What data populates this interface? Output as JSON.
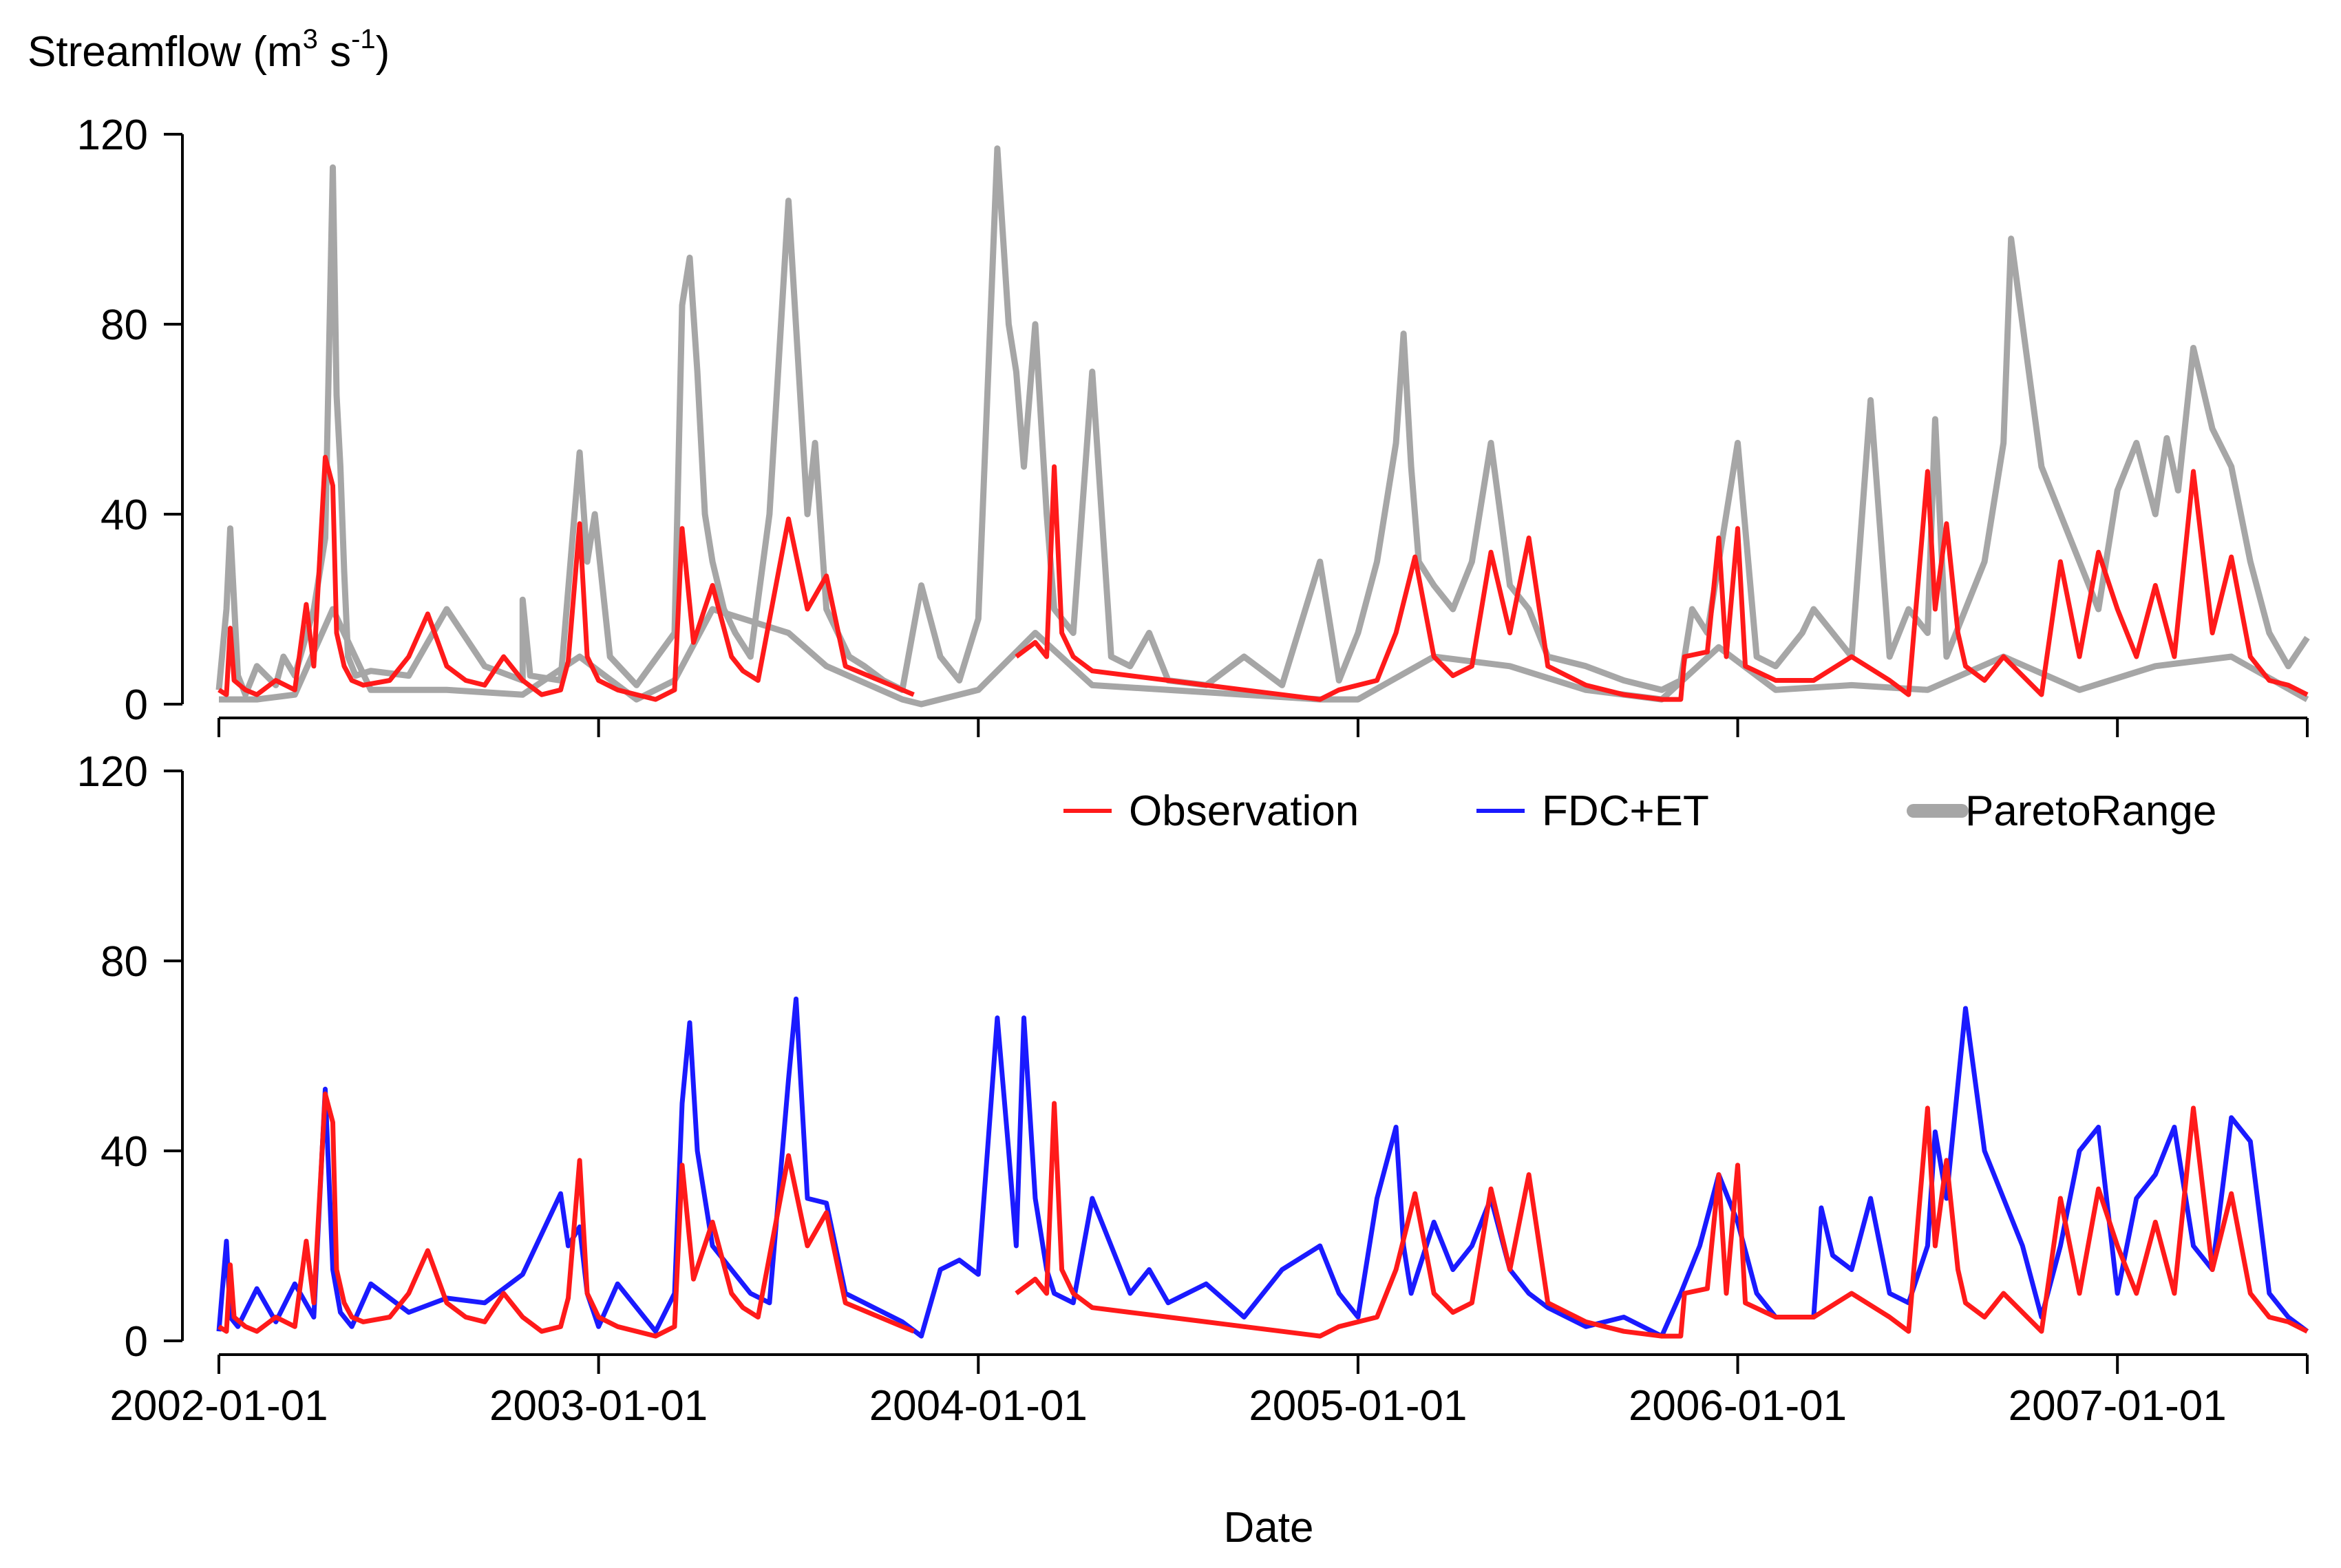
{
  "chart_data": [
    {
      "panel": "top",
      "type": "line",
      "ylabel_main": "Streamflow (m",
      "ylabel_sup1": "3",
      "ylabel_mid": " s",
      "ylabel_sup2": "-1",
      "ylabel_end": ")",
      "ylim": [
        0,
        120
      ],
      "yticks": [
        "0",
        "40",
        "80",
        "120"
      ],
      "ytick_values": [
        0,
        40,
        80,
        120
      ],
      "xlim": [
        2002.0,
        2007.5
      ],
      "xtick_values": [
        2002,
        2003,
        2004,
        2005,
        2006,
        2007
      ],
      "series": [
        {
          "name": "ParetoRange",
          "color": "#a6a6a6",
          "band": "upper",
          "x": [
            2002.0,
            2002.02,
            2002.03,
            2002.05,
            2002.07,
            2002.1,
            2002.15,
            2002.17,
            2002.2,
            2002.25,
            2002.28,
            2002.3,
            2002.31,
            2002.32,
            2002.33,
            2002.34,
            2002.36,
            2002.4,
            2002.5,
            2002.6,
            2002.7,
            2002.8,
            2002.8,
            2002.82,
            2002.9,
            2002.95,
            2002.97,
            2002.99,
            2003.03,
            2003.1,
            2003.2,
            2003.22,
            2003.24,
            2003.26,
            2003.28,
            2003.3,
            2003.33,
            2003.36,
            2003.4,
            2003.45,
            2003.5,
            2003.55,
            2003.57,
            2003.6,
            2003.63,
            2003.66,
            2003.7,
            2003.75,
            2003.8,
            2003.85,
            2003.9,
            2003.95,
            2004.0,
            2004.05,
            2004.08,
            2004.1,
            2004.12,
            2004.15,
            2004.18,
            2004.2,
            2004.25,
            2004.3,
            2004.35,
            2004.4,
            2004.45,
            2004.5,
            2004.6,
            2004.7,
            2004.8,
            2004.9,
            2004.95,
            2005.0,
            2005.05,
            2005.1,
            2005.12,
            2005.14,
            2005.16,
            2005.2,
            2005.25,
            2005.3,
            2005.35,
            2005.4,
            2005.45,
            2005.5,
            2005.6,
            2005.7,
            2005.8,
            2005.85,
            2005.88,
            2005.92,
            2005.95,
            2006.0,
            2006.05,
            2006.1,
            2006.17,
            2006.2,
            2006.3,
            2006.35,
            2006.4,
            2006.45,
            2006.5,
            2006.52,
            2006.55,
            2006.6,
            2006.65,
            2006.7,
            2006.72,
            2006.8,
            2006.85,
            2006.9,
            2006.95,
            2007.0,
            2007.05,
            2007.1,
            2007.13,
            2007.16,
            2007.2,
            2007.25,
            2007.3,
            2007.35,
            2007.4,
            2007.45,
            2007.5
          ],
          "y": [
            3,
            20,
            37,
            6,
            2,
            8,
            4,
            10,
            6,
            20,
            35,
            113,
            65,
            50,
            28,
            10,
            6,
            7,
            6,
            20,
            8,
            5,
            22,
            6,
            5,
            53,
            30,
            40,
            10,
            4,
            15,
            84,
            94,
            70,
            40,
            30,
            20,
            15,
            10,
            40,
            106,
            40,
            55,
            20,
            15,
            10,
            8,
            5,
            3,
            25,
            10,
            5,
            18,
            117,
            80,
            70,
            50,
            80,
            40,
            20,
            15,
            70,
            10,
            8,
            15,
            5,
            4,
            10,
            4,
            30,
            5,
            15,
            30,
            55,
            78,
            50,
            30,
            25,
            20,
            30,
            55,
            25,
            20,
            10,
            8,
            5,
            3,
            5,
            20,
            15,
            30,
            55,
            10,
            8,
            15,
            20,
            10,
            64,
            10,
            20,
            15,
            60,
            10,
            20,
            30,
            55,
            98,
            50,
            40,
            30,
            20,
            45,
            55,
            40,
            56,
            45,
            75,
            58,
            50,
            30,
            15,
            8,
            14
          ]
        },
        {
          "name": "ParetoRangeLow",
          "color": "#a6a6a6",
          "band": "lower",
          "x": [
            2002.0,
            2002.1,
            2002.2,
            2002.3,
            2002.4,
            2002.6,
            2002.8,
            2002.95,
            2003.1,
            2003.2,
            2003.3,
            2003.5,
            2003.6,
            2003.8,
            2003.85,
            2004.0,
            2004.15,
            2004.3,
            2004.5,
            2004.7,
            2004.9,
            2005.0,
            2005.2,
            2005.4,
            2005.6,
            2005.8,
            2005.95,
            2006.1,
            2006.3,
            2006.5,
            2006.7,
            2006.9,
            2007.1,
            2007.3,
            2007.5
          ],
          "y": [
            1,
            1,
            2,
            20,
            3,
            3,
            2,
            10,
            1,
            5,
            20,
            15,
            8,
            1,
            0,
            3,
            15,
            4,
            3,
            2,
            1,
            1,
            10,
            8,
            3,
            1,
            12,
            3,
            4,
            3,
            10,
            3,
            8,
            10,
            1
          ]
        },
        {
          "name": "Observation",
          "color": "#ff1a1a",
          "x": [
            2002.0,
            2002.02,
            2002.03,
            2002.04,
            2002.07,
            2002.1,
            2002.15,
            2002.2,
            2002.23,
            2002.25,
            2002.28,
            2002.3,
            2002.31,
            2002.33,
            2002.35,
            2002.38,
            2002.45,
            2002.5,
            2002.55,
            2002.6,
            2002.65,
            2002.7,
            2002.75,
            2002.8,
            2002.85,
            2002.9,
            2002.92,
            2002.95,
            2002.97,
            2003.0,
            2003.05,
            2003.15,
            2003.2,
            2003.22,
            2003.25,
            2003.3,
            2003.35,
            2003.38,
            2003.42,
            2003.5,
            2003.55,
            2003.6,
            2003.65,
            2003.8,
            2003.83
          ],
          "y": [
            3,
            2,
            16,
            5,
            3,
            2,
            5,
            3,
            21,
            8,
            52,
            46,
            15,
            8,
            5,
            4,
            5,
            10,
            19,
            8,
            5,
            4,
            10,
            5,
            2,
            3,
            9,
            38,
            10,
            5,
            3,
            1,
            3,
            37,
            13,
            25,
            10,
            7,
            5,
            39,
            20,
            27,
            8,
            3,
            2
          ],
          "x2": [
            2004.1,
            2004.15,
            2004.18,
            2004.2,
            2004.22,
            2004.25,
            2004.3,
            2004.4,
            2004.5,
            2004.6,
            2004.7,
            2004.8,
            2004.9,
            2004.95,
            2005.05,
            2005.1,
            2005.15,
            2005.2,
            2005.25,
            2005.3,
            2005.35,
            2005.4,
            2005.45,
            2005.5,
            2005.55,
            2005.6,
            2005.65,
            2005.7,
            2005.8,
            2005.85,
            2005.86,
            2005.92,
            2005.95,
            2005.97,
            2006.0,
            2006.02,
            2006.1,
            2006.2,
            2006.3,
            2006.4,
            2006.45,
            2006.5,
            2006.52,
            2006.55,
            2006.58,
            2006.6,
            2006.65,
            2006.7,
            2006.8,
            2006.85,
            2006.9,
            2006.95,
            2007.0,
            2007.05,
            2007.1,
            2007.15,
            2007.2,
            2007.25,
            2007.3,
            2007.35,
            2007.4,
            2007.45,
            2007.5
          ],
          "y2": [
            10,
            13,
            10,
            50,
            15,
            10,
            7,
            6,
            5,
            4,
            3,
            2,
            1,
            3,
            5,
            15,
            31,
            10,
            6,
            8,
            32,
            15,
            35,
            8,
            6,
            4,
            3,
            2,
            1,
            1,
            10,
            11,
            35,
            10,
            37,
            8,
            5,
            5,
            10,
            5,
            2,
            49,
            20,
            38,
            15,
            8,
            5,
            10,
            2,
            30,
            10,
            32,
            20,
            10,
            25,
            10,
            49,
            15,
            31,
            10,
            5,
            4,
            2
          ]
        }
      ]
    },
    {
      "panel": "bottom",
      "type": "line",
      "ylim": [
        0,
        120
      ],
      "yticks": [
        "0",
        "40",
        "80",
        "120"
      ],
      "ytick_values": [
        0,
        40,
        80,
        120
      ],
      "xlim": [
        2002.0,
        2007.5
      ],
      "xticks": [
        "2002-01-01",
        "2003-01-01",
        "2004-01-01",
        "2005-01-01",
        "2006-01-01",
        "2007-01-01"
      ],
      "xtick_values": [
        2002,
        2003,
        2004,
        2005,
        2006,
        2007
      ],
      "xlabel": "Date",
      "legend": [
        "Observation",
        "FDC+ET",
        "ParetoRange"
      ],
      "series": [
        {
          "name": "FDC+ET",
          "color": "#1a1aff",
          "x": [
            2002.0,
            2002.02,
            2002.03,
            2002.05,
            2002.1,
            2002.15,
            2002.2,
            2002.25,
            2002.28,
            2002.3,
            2002.32,
            2002.35,
            2002.4,
            2002.5,
            2002.6,
            2002.7,
            2002.8,
            2002.9,
            2002.92,
            2002.95,
            2002.97,
            2003.0,
            2003.05,
            2003.15,
            2003.2,
            2003.22,
            2003.24,
            2003.26,
            2003.3,
            2003.35,
            2003.4,
            2003.45,
            2003.5,
            2003.52,
            2003.55,
            2003.6,
            2003.65,
            2003.7,
            2003.8,
            2003.85,
            2003.9,
            2003.95,
            2004.0,
            2004.05,
            2004.08,
            2004.1,
            2004.12,
            2004.15,
            2004.18,
            2004.2,
            2004.25,
            2004.3,
            2004.4,
            2004.45,
            2004.5,
            2004.6,
            2004.7,
            2004.8,
            2004.9,
            2004.95,
            2005.0,
            2005.05,
            2005.1,
            2005.12,
            2005.14,
            2005.2,
            2005.25,
            2005.3,
            2005.35,
            2005.4,
            2005.45,
            2005.5,
            2005.6,
            2005.7,
            2005.8,
            2005.85,
            2005.9,
            2005.95,
            2006.0,
            2006.05,
            2006.1,
            2006.2,
            2006.22,
            2006.25,
            2006.3,
            2006.35,
            2006.4,
            2006.45,
            2006.5,
            2006.52,
            2006.55,
            2006.6,
            2006.65,
            2006.7,
            2006.75,
            2006.8,
            2006.85,
            2006.9,
            2006.95,
            2007.0,
            2007.05,
            2007.1,
            2007.15,
            2007.2,
            2007.25,
            2007.3,
            2007.35,
            2007.4,
            2007.45,
            2007.5
          ],
          "y": [
            2,
            21,
            5,
            3,
            11,
            4,
            12,
            5,
            53,
            15,
            6,
            3,
            12,
            6,
            9,
            8,
            14,
            31,
            20,
            24,
            10,
            3,
            12,
            2,
            10,
            50,
            67,
            40,
            20,
            15,
            10,
            8,
            55,
            72,
            30,
            29,
            10,
            8,
            4,
            1,
            15,
            17,
            14,
            68,
            40,
            20,
            68,
            30,
            15,
            10,
            8,
            30,
            10,
            15,
            8,
            12,
            5,
            15,
            20,
            10,
            5,
            30,
            45,
            20,
            10,
            25,
            15,
            20,
            30,
            15,
            10,
            7,
            3,
            5,
            1,
            10,
            20,
            35,
            25,
            10,
            5,
            5,
            28,
            18,
            15,
            30,
            10,
            8,
            20,
            44,
            30,
            70,
            40,
            30,
            20,
            5,
            20,
            40,
            45,
            10,
            30,
            35,
            45,
            20,
            15,
            47,
            42,
            10,
            5,
            2
          ]
        },
        {
          "name": "Observation",
          "color": "#ff1a1a",
          "x": [
            2002.0,
            2002.02,
            2002.03,
            2002.04,
            2002.07,
            2002.1,
            2002.15,
            2002.2,
            2002.23,
            2002.25,
            2002.28,
            2002.3,
            2002.31,
            2002.33,
            2002.35,
            2002.38,
            2002.45,
            2002.5,
            2002.55,
            2002.6,
            2002.65,
            2002.7,
            2002.75,
            2002.8,
            2002.85,
            2002.9,
            2002.92,
            2002.95,
            2002.97,
            2003.0,
            2003.05,
            2003.15,
            2003.2,
            2003.22,
            2003.25,
            2003.3,
            2003.35,
            2003.38,
            2003.42,
            2003.5,
            2003.55,
            2003.6,
            2003.65,
            2003.8,
            2003.83
          ],
          "y": [
            3,
            2,
            16,
            5,
            3,
            2,
            5,
            3,
            21,
            8,
            52,
            46,
            15,
            8,
            5,
            4,
            5,
            10,
            19,
            8,
            5,
            4,
            10,
            5,
            2,
            3,
            9,
            38,
            10,
            5,
            3,
            1,
            3,
            37,
            13,
            25,
            10,
            7,
            5,
            39,
            20,
            27,
            8,
            3,
            2
          ],
          "x2": [
            2004.1,
            2004.15,
            2004.18,
            2004.2,
            2004.22,
            2004.25,
            2004.3,
            2004.4,
            2004.5,
            2004.6,
            2004.7,
            2004.8,
            2004.9,
            2004.95,
            2005.05,
            2005.1,
            2005.15,
            2005.2,
            2005.25,
            2005.3,
            2005.35,
            2005.4,
            2005.45,
            2005.5,
            2005.55,
            2005.6,
            2005.65,
            2005.7,
            2005.8,
            2005.85,
            2005.86,
            2005.92,
            2005.95,
            2005.97,
            2006.0,
            2006.02,
            2006.1,
            2006.2,
            2006.3,
            2006.4,
            2006.45,
            2006.5,
            2006.52,
            2006.55,
            2006.58,
            2006.6,
            2006.65,
            2006.7,
            2006.8,
            2006.85,
            2006.9,
            2006.95,
            2007.0,
            2007.05,
            2007.1,
            2007.15,
            2007.2,
            2007.25,
            2007.3,
            2007.35,
            2007.4,
            2007.45,
            2007.5
          ],
          "y2": [
            10,
            13,
            10,
            50,
            15,
            10,
            7,
            6,
            5,
            4,
            3,
            2,
            1,
            3,
            5,
            15,
            31,
            10,
            6,
            8,
            32,
            15,
            35,
            8,
            6,
            4,
            3,
            2,
            1,
            1,
            10,
            11,
            35,
            10,
            37,
            8,
            5,
            5,
            10,
            5,
            2,
            49,
            20,
            38,
            15,
            8,
            5,
            10,
            2,
            30,
            10,
            32,
            20,
            10,
            25,
            10,
            49,
            15,
            31,
            10,
            5,
            4,
            2
          ]
        }
      ]
    }
  ]
}
